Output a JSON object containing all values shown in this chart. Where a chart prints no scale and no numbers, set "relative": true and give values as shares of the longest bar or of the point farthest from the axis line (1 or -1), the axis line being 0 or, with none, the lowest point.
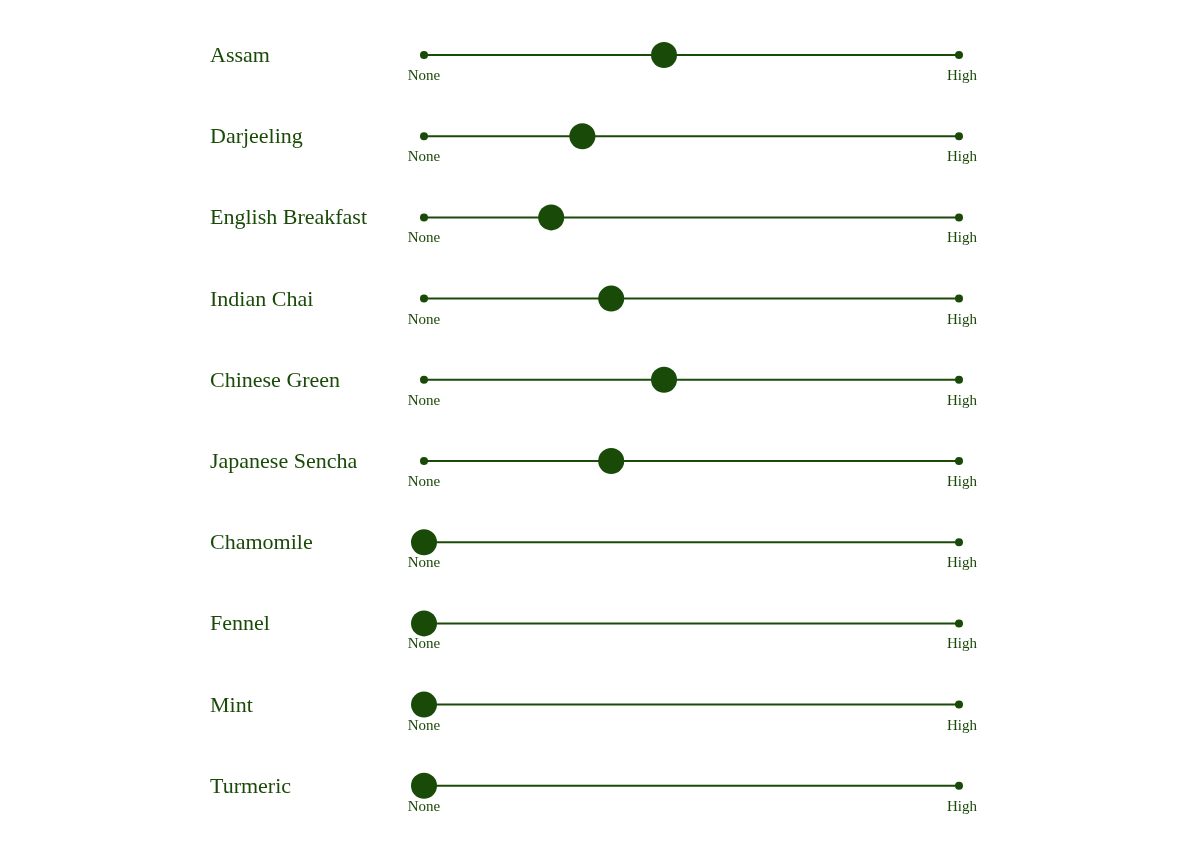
{
  "chart_data": {
    "type": "scatter",
    "orientation": "horizontal",
    "color": "#1a4a08",
    "relative": true,
    "categories": [
      "Assam",
      "Darjeeling",
      "English Breakfast",
      "Indian Chai",
      "Chinese Green",
      "Japanese Sencha",
      "Chamomile",
      "Fennel",
      "Mint",
      "Turmeric"
    ],
    "values": [
      1,
      0.66,
      0.53,
      0.78,
      1,
      0.78,
      0,
      0,
      0,
      0
    ],
    "annotations": [
      "None",
      "High"
    ],
    "marker": "circle",
    "grid": "y"
  }
}
